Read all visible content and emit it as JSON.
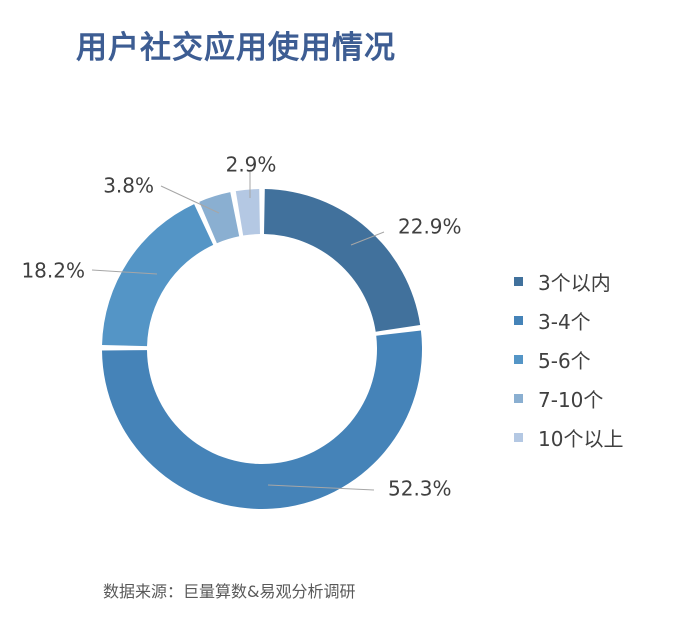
{
  "title": "用户社交应用使用情况",
  "source": "数据来源：巨量算数&易观分析调研",
  "chart_data": {
    "type": "pie",
    "donut": true,
    "title": "用户社交应用使用情况",
    "legend_position": "right",
    "categories": [
      "3个以内",
      "3-4个",
      "5-6个",
      "7-10个",
      "10个以上"
    ],
    "values": [
      22.9,
      52.3,
      18.2,
      3.8,
      2.9
    ],
    "labels": [
      "22.9%",
      "52.3%",
      "18.2%",
      "3.8%",
      "2.9%"
    ],
    "colors": [
      "#41719c",
      "#4583b8",
      "#5495c6",
      "#8aafd1",
      "#b4c8e3"
    ]
  }
}
